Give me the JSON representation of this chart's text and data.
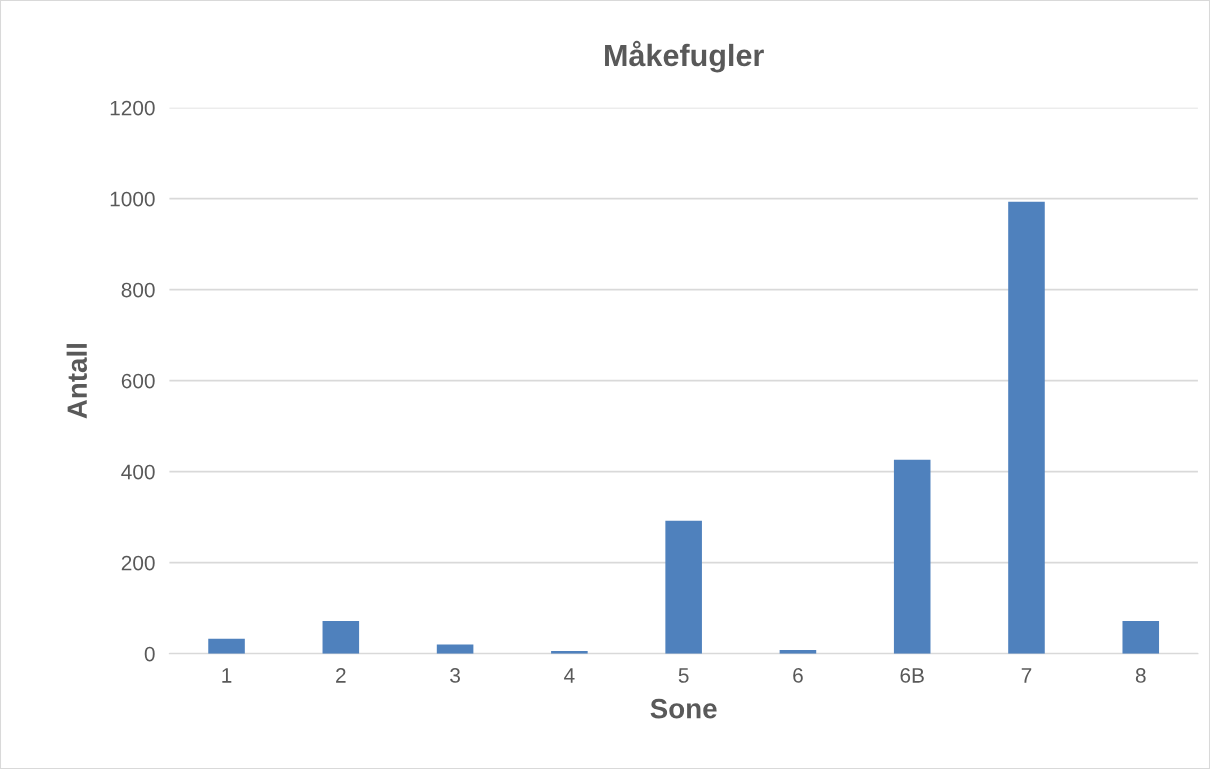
{
  "chart_data": {
    "type": "bar",
    "title": "Måkefugler",
    "xlabel": "Sone",
    "ylabel": "Antall",
    "categories": [
      "1",
      "2",
      "3",
      "4",
      "5",
      "6",
      "6B",
      "7",
      "8"
    ],
    "values": [
      33,
      72,
      20,
      6,
      292,
      8,
      426,
      993,
      72
    ],
    "color": "#4f81bd",
    "ylim": [
      0,
      1200
    ],
    "yticks": [
      0,
      200,
      400,
      600,
      800,
      1000,
      1200
    ],
    "grid": "y"
  }
}
